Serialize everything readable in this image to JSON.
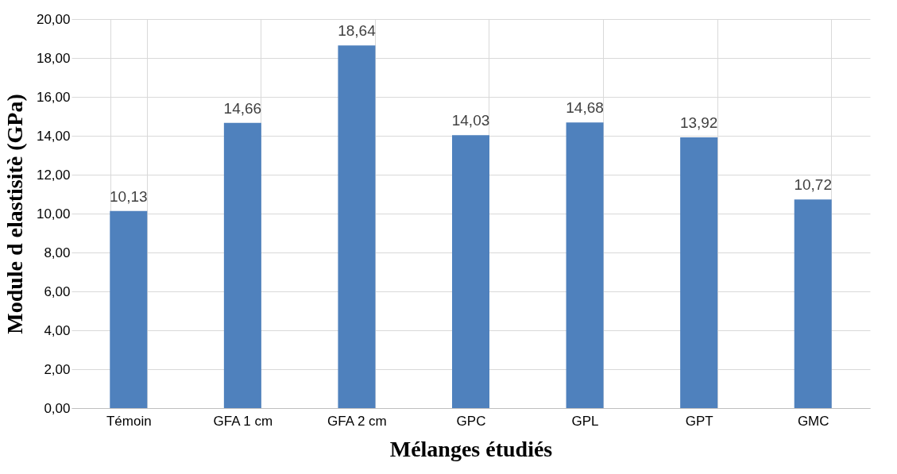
{
  "chart_data": {
    "type": "bar",
    "xlabel": "Mélanges étudiés",
    "ylabel": "Module d elastisitè (GPa)",
    "categories": [
      "Témoin",
      "GFA 1 cm",
      "GFA 2 cm",
      "GPC",
      "GPL",
      "GPT",
      "GMC"
    ],
    "values": [
      10.13,
      14.66,
      18.64,
      14.03,
      14.68,
      13.92,
      10.72
    ],
    "value_labels": [
      "10,13",
      "14,66",
      "18,64",
      "14,03",
      "14,68",
      "13,92",
      "10,72"
    ],
    "color": "#4f81bd",
    "ylim": [
      0,
      20
    ],
    "yticks": [
      {
        "value": 0,
        "label": "0,00"
      },
      {
        "value": 2,
        "label": "2,00"
      },
      {
        "value": 4,
        "label": "4,00"
      },
      {
        "value": 6,
        "label": "6,00"
      },
      {
        "value": 8,
        "label": "8,00"
      },
      {
        "value": 10,
        "label": "10,00"
      },
      {
        "value": 12,
        "label": "12,00"
      },
      {
        "value": 14,
        "label": "14,00"
      },
      {
        "value": 16,
        "label": "16,00"
      },
      {
        "value": 18,
        "label": "18,00"
      },
      {
        "value": 20,
        "label": "20,00"
      }
    ],
    "grid": true
  }
}
